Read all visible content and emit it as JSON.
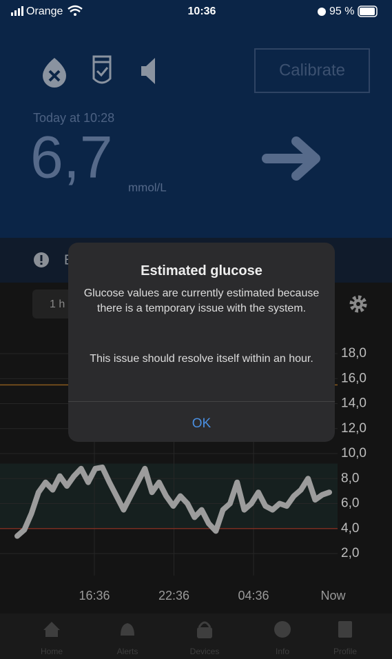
{
  "status_bar": {
    "carrier": "Orange",
    "time": "10:36",
    "battery": "95 %"
  },
  "header": {
    "calibrate": "Calibrate",
    "timestamp": "Today at 10:28",
    "glucose": "6,7",
    "unit": "mmol/L"
  },
  "banner": {
    "text": "E"
  },
  "range_button": "1 h",
  "chart": {
    "yticks": [
      {
        "value": 18,
        "label": "18,0"
      },
      {
        "value": 16,
        "label": "16,0"
      },
      {
        "value": 14,
        "label": "14,0"
      },
      {
        "value": 12,
        "label": "12,0"
      },
      {
        "value": 10,
        "label": "10,0"
      },
      {
        "value": 8,
        "label": "8,0"
      },
      {
        "value": 6,
        "label": "6,0"
      },
      {
        "value": 4,
        "label": "4,0"
      },
      {
        "value": 2,
        "label": "2,0"
      }
    ],
    "xlabels": [
      "16:36",
      "22:36",
      "04:36",
      "Now"
    ],
    "high_limit": 15.5,
    "low_limit": 4,
    "target_range": [
      4,
      9.2
    ],
    "trace": [
      3.4,
      3.9,
      5.2,
      6.9,
      7.7,
      7.1,
      8.2,
      7.4,
      8.2,
      8.8,
      7.7,
      8.8,
      8.9,
      7.7,
      6.6,
      5.5,
      6.6,
      7.7,
      8.8,
      6.9,
      7.7,
      6.6,
      5.8,
      6.6,
      6.0,
      4.9,
      5.5,
      4.4,
      3.8,
      5.5,
      6.0,
      7.7,
      5.5,
      6.0,
      6.9,
      5.8,
      5.5,
      6.0,
      5.8,
      6.6,
      7.1,
      8.0,
      6.3,
      6.7,
      6.9
    ]
  },
  "dialog": {
    "title": "Estimated glucose",
    "message": "Glucose values are currently estimated because there is a temporary issue with the system.",
    "message2": "This issue should resolve itself within an hour.",
    "button": "OK"
  },
  "tabs": [
    "Home",
    "Alerts",
    "Devices",
    "Info",
    "Profile"
  ]
}
